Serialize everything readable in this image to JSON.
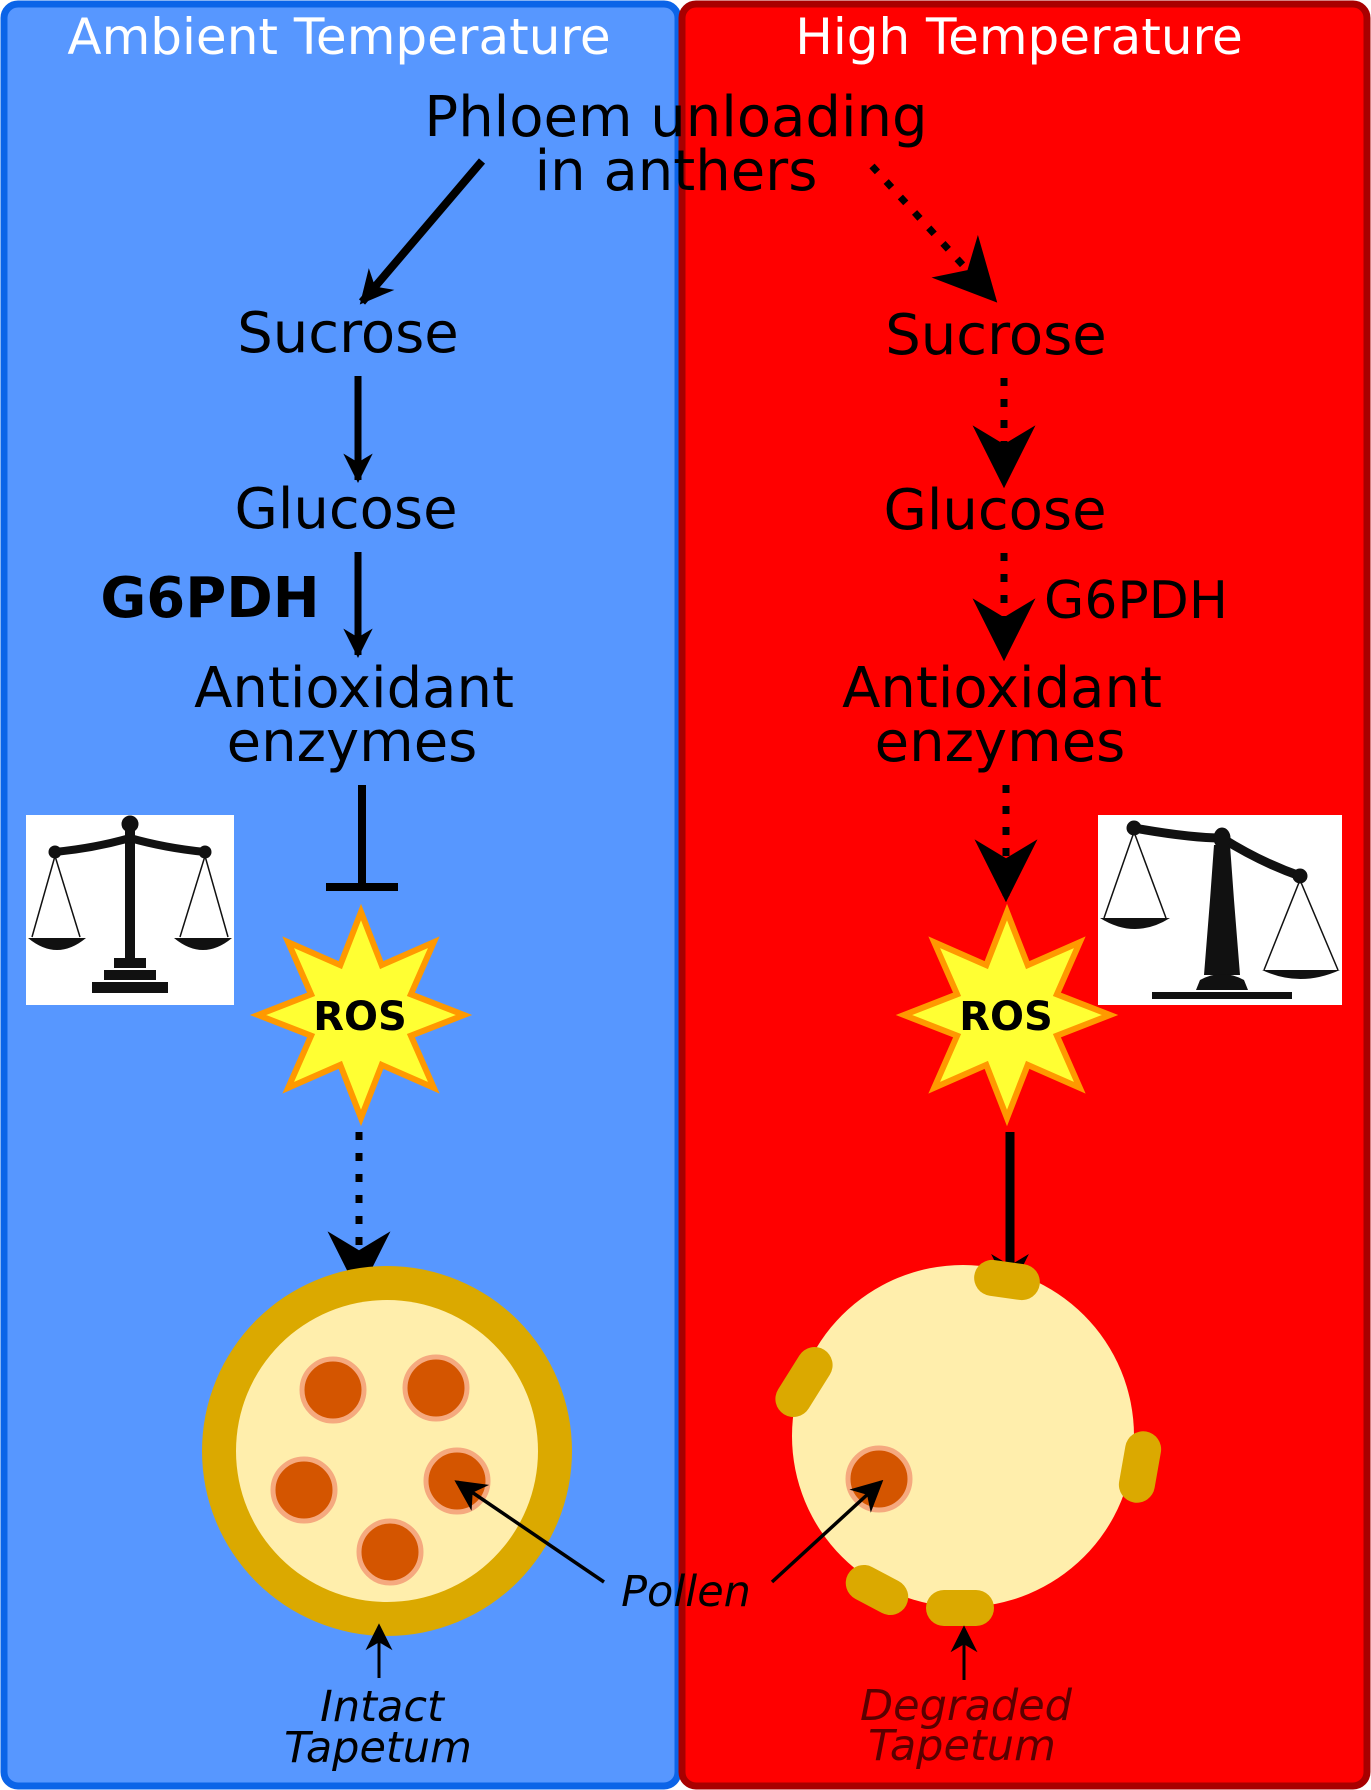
{
  "panels": {
    "left": {
      "title": "Ambient Temperature",
      "color": "#5797ff",
      "border": "#0b64e8"
    },
    "right": {
      "title": "High Temperature",
      "color": "#ff0000",
      "border": "#a80000"
    }
  },
  "source": {
    "line1": "Phloem unloading",
    "line2": "in anthers"
  },
  "left": {
    "sucrose": "Sucrose",
    "glucose": "Glucose",
    "enzyme": "G6PDH",
    "antioxidant_line1": "Antioxidant",
    "antioxidant_line2": "enzymes",
    "ros": "ROS",
    "tapetum_line1": "Intact",
    "tapetum_line2": "Tapetum",
    "balance_icon": "balanced-scale-icon"
  },
  "right": {
    "sucrose": "Sucrose",
    "glucose": "Glucose",
    "enzyme": "G6PDH",
    "antioxidant_line1": "Antioxidant",
    "antioxidant_line2": "enzymes",
    "ros": "ROS",
    "tapetum_line1": "Degraded",
    "tapetum_line2": "Tapetum",
    "balance_icon": "unbalanced-scale-icon"
  },
  "pollen_label": "Pollen",
  "colors": {
    "tapetum": "#dba900",
    "anther": "#ffeeac",
    "pollen": "#d45500",
    "pollen_rim": "#f5a97f",
    "ros_fill": "#ffff33",
    "ros_stroke": "#ff9900"
  }
}
